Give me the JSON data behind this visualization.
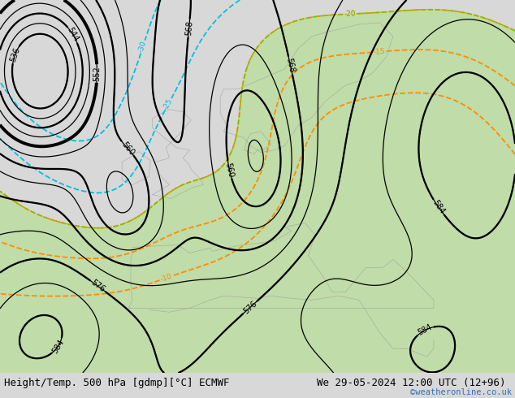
{
  "title_left": "Height/Temp. 500 hPa [gdmp][°C] ECMWF",
  "title_right": "We 29-05-2024 12:00 UTC (12+96)",
  "watermark": "©weatheronline.co.uk",
  "bg_color": "#d8d8d8",
  "land_green": "#c0dca8",
  "height_color": "#000000",
  "temp_orange": "#ff8c00",
  "temp_cyan": "#00c0e0",
  "temp_green": "#80c000",
  "bar_color": "#ffffff",
  "text_color": "#000000",
  "wm_color": "#3070c0",
  "title_fs": 9,
  "label_fs": 6.5
}
